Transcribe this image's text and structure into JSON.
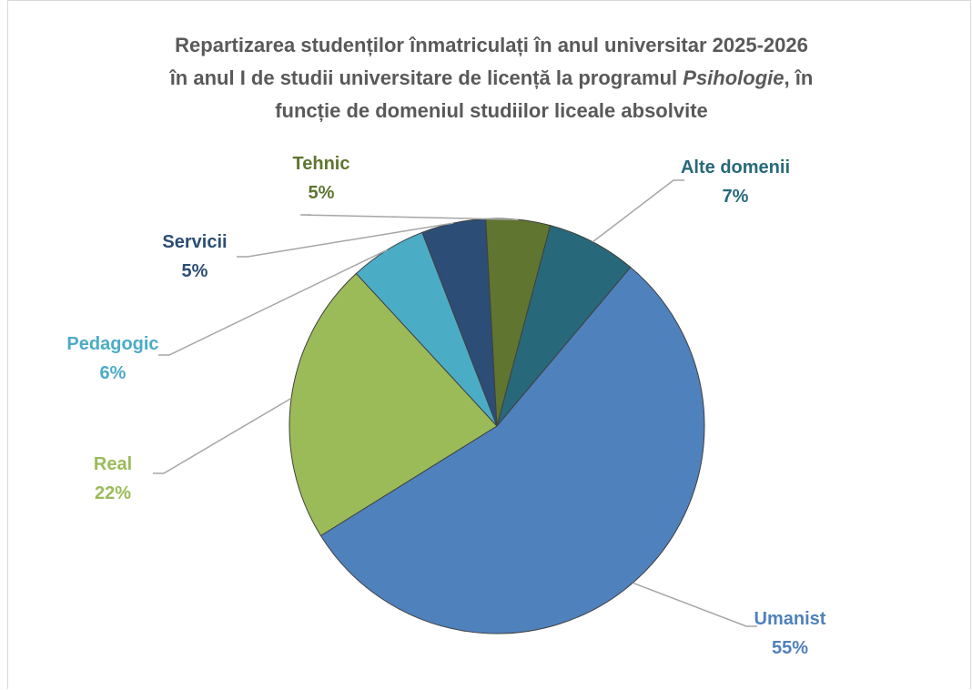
{
  "chart_data": {
    "type": "pie",
    "title": {
      "line1": "Repartizarea studenților înmatriculați în anul universitar 2025-2026",
      "line2_pre": "în anul I de studii universitare de licență la programul ",
      "line2_em": "Psihologie",
      "line2_post": ", în",
      "line3": "funcție de domeniul studiilor liceale absolvite"
    },
    "slices": [
      {
        "label": "Alte domenii",
        "value": 7,
        "display": "7%",
        "color": "#27697a"
      },
      {
        "label": "Umanist",
        "value": 55,
        "display": "55%",
        "color": "#4f81bd"
      },
      {
        "label": "Real",
        "value": 22,
        "display": "22%",
        "color": "#9bbb59"
      },
      {
        "label": "Pedagogic",
        "value": 6,
        "display": "6%",
        "color": "#4bacc6"
      },
      {
        "label": "Servicii",
        "value": 5,
        "display": "5%",
        "color": "#2c4d75"
      },
      {
        "label": "Tehnic",
        "value": 5,
        "display": "5%",
        "color": "#5f7530"
      }
    ],
    "legend": "none",
    "data_labels": "outside with leader lines"
  }
}
